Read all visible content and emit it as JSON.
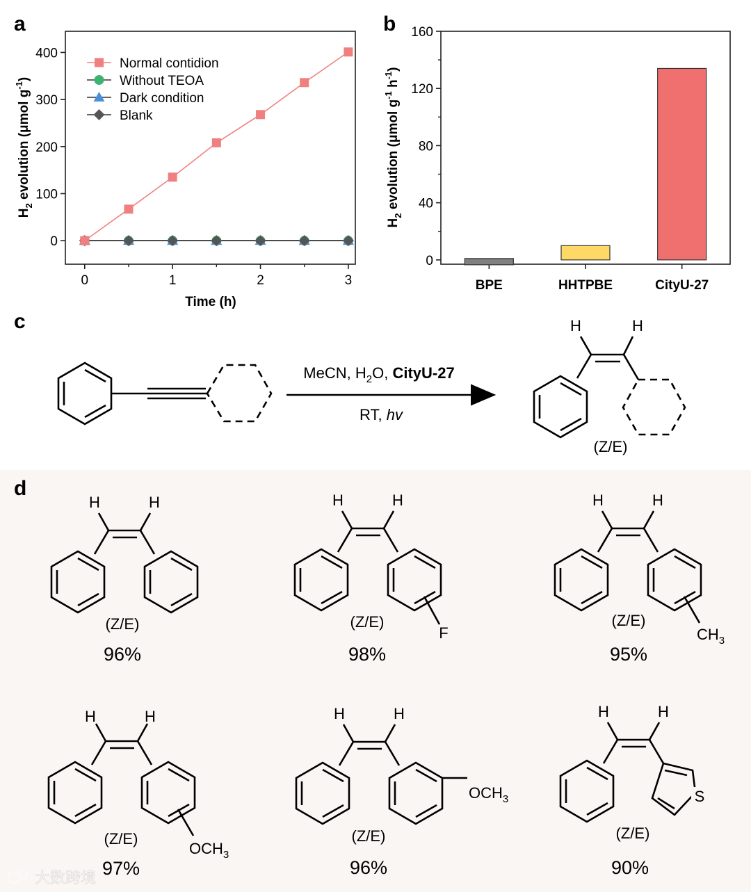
{
  "panels": {
    "a": "a",
    "b": "b",
    "c": "c",
    "d": "d"
  },
  "colors": {
    "normal": "#f08080",
    "teoa": "#3cb371",
    "dark": "#4a90d9",
    "blank": "#555555",
    "bpe": "#808080",
    "hhtpbe": "#ffd966",
    "cityu": "#f07070",
    "bg_d": "#faf6f3"
  },
  "chart_data": [
    {
      "type": "line",
      "panel": "a",
      "xlabel": "Time (h)",
      "ylabel_main": "H",
      "ylabel_sub": "2",
      "ylabel_rest": " evolution (μmol g",
      "ylabel_sup": "-1",
      "ylabel_end": ")",
      "xlim": [
        -0.22,
        3.08
      ],
      "ylim": [
        -50,
        445
      ],
      "xticks": [
        0,
        1,
        2,
        3
      ],
      "yticks": [
        0,
        100,
        200,
        300,
        400
      ],
      "legend_position": "top-left",
      "x": [
        0,
        0.5,
        1,
        1.5,
        2,
        2.5,
        3
      ],
      "series": [
        {
          "name": "Normal contidion",
          "marker": "square",
          "color": "#f08080",
          "values": [
            0,
            67,
            135,
            208,
            268,
            336,
            401
          ]
        },
        {
          "name": "Without TEOA",
          "marker": "circle",
          "color": "#3cb371",
          "values": [
            0,
            0,
            0,
            0,
            0,
            0,
            0
          ]
        },
        {
          "name": "Dark condition",
          "marker": "triangle",
          "color": "#4a90d9",
          "values": [
            0,
            0,
            0,
            0,
            0,
            0,
            0
          ]
        },
        {
          "name": "Blank",
          "marker": "diamond",
          "color": "#555555",
          "values": [
            0,
            0,
            0,
            0,
            0,
            0,
            0
          ]
        }
      ]
    },
    {
      "type": "bar",
      "panel": "b",
      "categories": [
        "BPE",
        "HHTPBE",
        "CityU-27"
      ],
      "values": [
        0,
        10,
        134
      ],
      "colors": [
        "#808080",
        "#ffd966",
        "#f07070"
      ],
      "ylabel_main": "H",
      "ylabel_sub": "2",
      "ylabel_rest": " evolution (μmol g",
      "ylabel_sup1": "-1",
      "ylabel_mid": " h",
      "ylabel_sup2": "-1",
      "ylabel_end": ")",
      "ylim": [
        -3,
        160
      ],
      "yticks": [
        0,
        40,
        80,
        120,
        160
      ]
    }
  ],
  "reaction": {
    "conditions_line1_a": "MeCN, H",
    "conditions_line1_sub": "2",
    "conditions_line1_b": "O, ",
    "conditions_line1_bold": "CityU-27",
    "conditions_line2_a": "RT, ",
    "conditions_line2_italic": "hv",
    "product_label": "(Z/E)",
    "h_label": "H"
  },
  "substrates": [
    {
      "label": "(Z/E)",
      "yield": "96%",
      "substituent": ""
    },
    {
      "label": "(Z/E)",
      "yield": "98%",
      "substituent": "F"
    },
    {
      "label": "(Z/E)",
      "yield": "95%",
      "substituent": "CH",
      "substituent_sub": "3"
    },
    {
      "label": "(Z/E)",
      "yield": "97%",
      "substituent": "OCH",
      "substituent_sub": "3"
    },
    {
      "label": "(Z/E)",
      "yield": "96%",
      "substituent": "OCH",
      "substituent_sub": "3"
    },
    {
      "label": "(Z/E)",
      "yield": "90%",
      "substituent": "S"
    }
  ],
  "watermark": "大数跨境"
}
